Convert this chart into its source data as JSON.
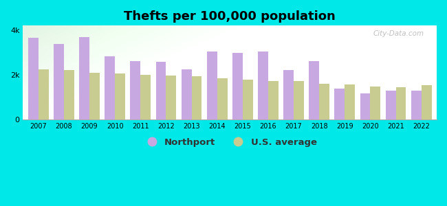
{
  "title": "Thefts per 100,000 population",
  "years": [
    2007,
    2008,
    2009,
    2010,
    2011,
    2012,
    2013,
    2014,
    2015,
    2016,
    2017,
    2018,
    2019,
    2020,
    2021,
    2022
  ],
  "northport": [
    3650,
    3380,
    3700,
    2820,
    2620,
    2580,
    2230,
    3050,
    2980,
    3050,
    2200,
    2600,
    1380,
    1150,
    1280,
    1280
  ],
  "us_average": [
    2250,
    2200,
    2100,
    2050,
    1980,
    1970,
    1920,
    1830,
    1780,
    1730,
    1720,
    1580,
    1560,
    1480,
    1440,
    1530
  ],
  "northport_color": "#c8a8e0",
  "us_avg_color": "#c8cc90",
  "outer_background": "#00e8e8",
  "ylim": [
    0,
    4200
  ],
  "yticks": [
    0,
    2000,
    4000
  ],
  "ytick_labels": [
    "0",
    "2k",
    "4k"
  ],
  "legend_northport": "Northport",
  "legend_us": "U.S. average",
  "bar_width": 0.4,
  "title_fontsize": 13,
  "watermark": "City-Data.com"
}
